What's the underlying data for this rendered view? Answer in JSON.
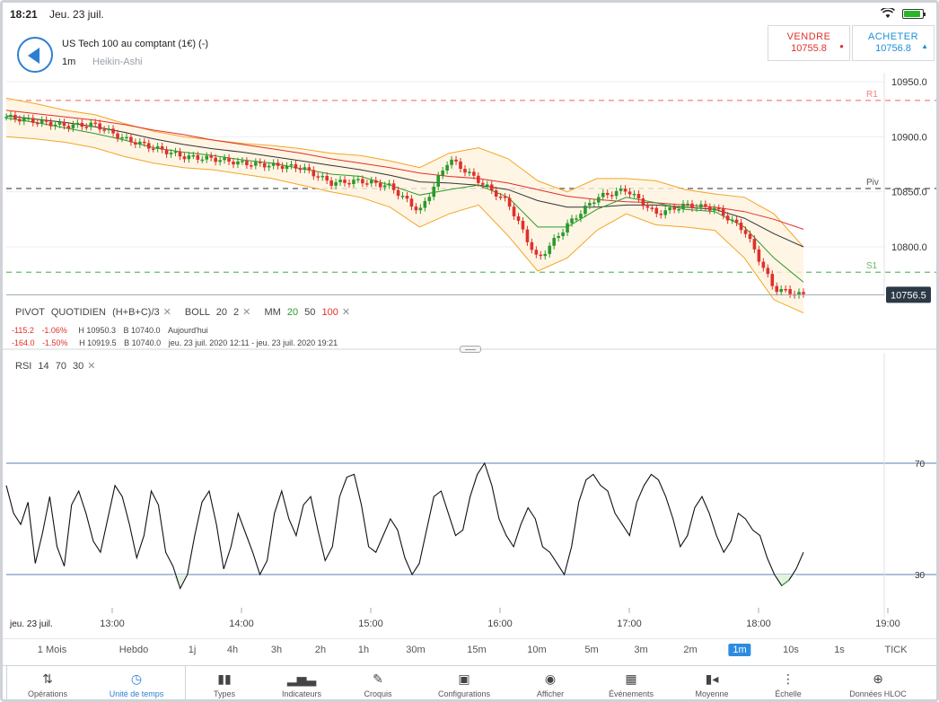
{
  "status": {
    "time": "18:21",
    "date": "Jeu. 23 juil.",
    "wifi_icon": "wifi-icon",
    "battery_icon": "battery-icon"
  },
  "header": {
    "instrument": "US Tech 100 au comptant (1€) (-)",
    "timeframe": "1m",
    "chart_type": "Heikin-Ashi",
    "sell": {
      "label": "VENDRE",
      "value": "10755.8",
      "color": "#e0302a"
    },
    "buy": {
      "label": "ACHETER",
      "value": "10756.8",
      "color": "#1c8fd8"
    }
  },
  "legend": {
    "pivot": {
      "name": "PIVOT",
      "mode": "QUOTIDIEN",
      "formula": "(H+B+C)/3"
    },
    "boll": {
      "name": "BOLL",
      "p1": "20",
      "p2": "2"
    },
    "mm": {
      "name": "MM",
      "p1": "20",
      "p2": "50",
      "p3": "100"
    },
    "row1": {
      "chg": "-115.2",
      "pct": "-1.06%",
      "high": "H 10950.3",
      "low": "B 10740.0",
      "period": "Aujourd'hui"
    },
    "row2": {
      "chg": "-164.0",
      "pct": "-1.50%",
      "high": "H 10919.5",
      "low": "B 10740.0",
      "period": "jeu. 23 juil. 2020 12:11 - jeu. 23 juil. 2020 19:21"
    },
    "rsi": {
      "name": "RSI",
      "p1": "14",
      "p2": "70",
      "p3": "30"
    }
  },
  "chart_data": [
    {
      "type": "candlestick",
      "style": "Heikin-Ashi",
      "yaxis_ticks": [
        "10950.0",
        "10900.0",
        "10850.0",
        "10800.0"
      ],
      "ylim": [
        10735,
        10965
      ],
      "current_price": "10756.5",
      "levels": [
        {
          "name": "R1",
          "value": 10933,
          "color": "#f08080"
        },
        {
          "name": "Piv",
          "value": 10853,
          "color": "#555555"
        },
        {
          "name": "S1",
          "value": 10777,
          "color": "#66bb66"
        }
      ],
      "x_ticks": [
        "13:00",
        "14:00",
        "15:00",
        "16:00",
        "17:00",
        "18:00",
        "19:00"
      ],
      "x_start_label": "jeu. 23 juil.",
      "close_series": {
        "times": [
          "12:11",
          "12:30",
          "12:45",
          "13:00",
          "13:15",
          "13:30",
          "13:45",
          "14:00",
          "14:15",
          "14:30",
          "14:45",
          "15:00",
          "15:15",
          "15:30",
          "15:45",
          "15:55",
          "16:00",
          "16:15",
          "16:25",
          "16:35",
          "16:45",
          "17:00",
          "17:15",
          "17:30",
          "17:45",
          "18:00",
          "18:10",
          "18:20"
        ],
        "values": [
          10918,
          10914,
          10910,
          10911,
          10898,
          10890,
          10882,
          10880,
          10876,
          10874,
          10872,
          10858,
          10860,
          10855,
          10832,
          10880,
          10860,
          10840,
          10788,
          10820,
          10845,
          10852,
          10830,
          10838,
          10835,
          10815,
          10762,
          10756
        ]
      },
      "mm20": [
        10917,
        10913,
        10908,
        10903,
        10897,
        10890,
        10886,
        10883,
        10879,
        10876,
        10871,
        10866,
        10864,
        10856,
        10847,
        10852,
        10856,
        10845,
        10818,
        10818,
        10834,
        10845,
        10840,
        10834,
        10832,
        10818,
        10790,
        10768
      ],
      "mm50": [
        10919,
        10916,
        10913,
        10909,
        10904,
        10898,
        10893,
        10889,
        10886,
        10882,
        10878,
        10874,
        10870,
        10865,
        10859,
        10858,
        10856,
        10852,
        10842,
        10836,
        10836,
        10838,
        10838,
        10836,
        10834,
        10826,
        10812,
        10800
      ],
      "mm100": [
        10924,
        10921,
        10918,
        10915,
        10911,
        10906,
        10902,
        10897,
        10893,
        10889,
        10885,
        10880,
        10876,
        10872,
        10867,
        10864,
        10862,
        10858,
        10852,
        10846,
        10843,
        10841,
        10840,
        10838,
        10836,
        10832,
        10825,
        10816
      ],
      "boll_upper": [
        10935,
        10930,
        10924,
        10920,
        10912,
        10905,
        10900,
        10897,
        10894,
        10892,
        10889,
        10885,
        10883,
        10878,
        10872,
        10885,
        10890,
        10880,
        10860,
        10850,
        10862,
        10862,
        10860,
        10852,
        10848,
        10845,
        10830,
        10800
      ],
      "boll_lower": [
        10900,
        10898,
        10895,
        10890,
        10882,
        10876,
        10872,
        10870,
        10866,
        10862,
        10856,
        10850,
        10845,
        10836,
        10818,
        10830,
        10838,
        10810,
        10778,
        10790,
        10815,
        10830,
        10820,
        10818,
        10815,
        10790,
        10752,
        10740
      ]
    },
    {
      "type": "line",
      "name": "RSI",
      "ylim": [
        0,
        100
      ],
      "levels": [
        70,
        30
      ],
      "yaxis_ticks": [
        "70",
        "30"
      ],
      "values": [
        62,
        52,
        48,
        56,
        34,
        45,
        58,
        40,
        33,
        55,
        60,
        52,
        42,
        38,
        50,
        62,
        58,
        48,
        36,
        44,
        60,
        55,
        38,
        33,
        25,
        30,
        44,
        56,
        60,
        48,
        32,
        40,
        52,
        45,
        38,
        30,
        35,
        52,
        60,
        50,
        44,
        55,
        58,
        46,
        35,
        40,
        58,
        65,
        66,
        55,
        40,
        38,
        44,
        50,
        46,
        36,
        30,
        34,
        46,
        58,
        60,
        52,
        44,
        46,
        58,
        66,
        70,
        62,
        50,
        44,
        40,
        48,
        54,
        50,
        40,
        38,
        34,
        30,
        40,
        56,
        64,
        66,
        62,
        60,
        52,
        48,
        44,
        56,
        62,
        66,
        64,
        58,
        50,
        40,
        44,
        54,
        58,
        52,
        44,
        38,
        42,
        52,
        50,
        46,
        44,
        36,
        30,
        26,
        28,
        32,
        38
      ]
    }
  ],
  "timeframes": [
    "1 Mois",
    "Hebdo",
    "1j",
    "4h",
    "3h",
    "2h",
    "1h",
    "30m",
    "15m",
    "10m",
    "5m",
    "3m",
    "2m",
    "1m",
    "10s",
    "1s",
    "TICK"
  ],
  "timeframe_active": "1m",
  "toolbar": [
    {
      "label": "Opérations",
      "icon": "sort-arrows-icon"
    },
    {
      "label": "Unité de temps",
      "icon": "clock-icon"
    },
    {
      "label": "Types",
      "icon": "candles-icon"
    },
    {
      "label": "Indicateurs",
      "icon": "bar-chart-icon"
    },
    {
      "label": "Croquis",
      "icon": "pencil-icon"
    },
    {
      "label": "Configurations",
      "icon": "layout-icon"
    },
    {
      "label": "Afficher",
      "icon": "eye-icon"
    },
    {
      "label": "Événements",
      "icon": "calendar-icon"
    },
    {
      "label": "Moyenne",
      "icon": "average-icon"
    },
    {
      "label": "Échelle",
      "icon": "scale-icon"
    },
    {
      "label": "Données HLOC",
      "icon": "crosshair-icon"
    }
  ],
  "toolbar_active": "Unité de temps"
}
